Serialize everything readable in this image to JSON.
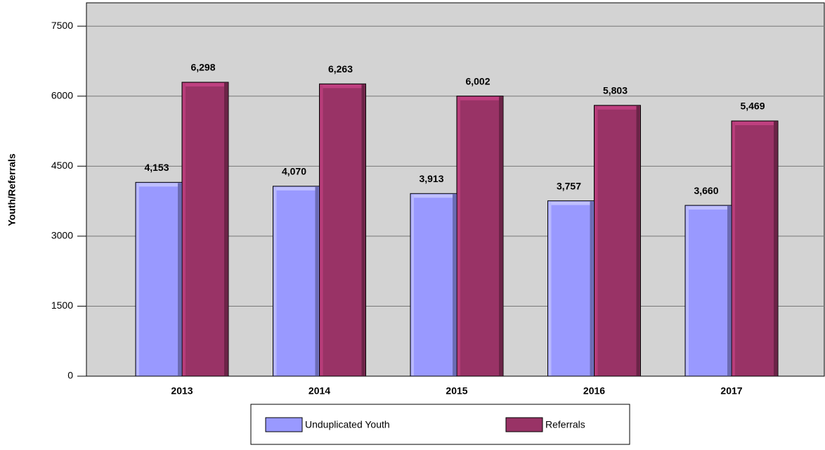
{
  "chart_data": {
    "type": "bar",
    "y_axis_label": "Youth/Referrals",
    "categories": [
      "2013",
      "2014",
      "2015",
      "2016",
      "2017"
    ],
    "series": [
      {
        "name": "Unduplicated Youth",
        "color": "#9999ff",
        "values": [
          4153,
          4070,
          3913,
          3757,
          3660
        ],
        "value_labels": [
          "4,153",
          "4,070",
          "3,913",
          "3,757",
          "3,660"
        ]
      },
      {
        "name": "Referrals",
        "color": "#993366",
        "values": [
          6298,
          6263,
          6002,
          5803,
          5469
        ],
        "value_labels": [
          "6,298",
          "6,263",
          "6,002",
          "5,803",
          "5,469"
        ]
      }
    ],
    "ylim": [
      0,
      8000
    ],
    "yticks": [
      0,
      1500,
      3000,
      4500,
      6000,
      7500
    ],
    "grid": true,
    "legend": "bottom"
  }
}
